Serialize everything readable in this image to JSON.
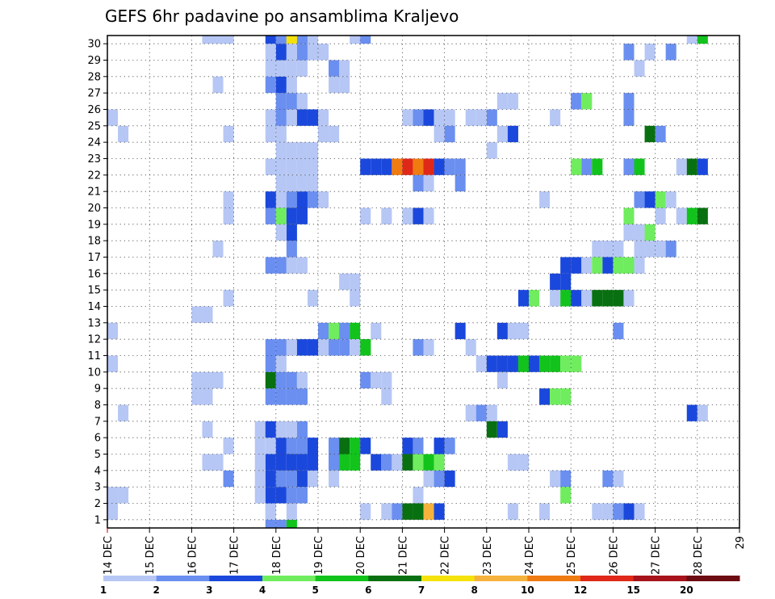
{
  "chart_data": {
    "type": "heatmap",
    "title": "GEFS 6hr padavine po ansamblima Kraljevo",
    "xlabel": "",
    "ylabel": "",
    "x_ticks": [
      "14 DEC",
      "15 DEC",
      "16 DEC",
      "17 DEC",
      "18 DEC",
      "19 DEC",
      "20 DEC",
      "21 DEC",
      "22 DEC",
      "23 DEC",
      "24 DEC",
      "25 DEC",
      "26 DEC",
      "27 DEC",
      "28 DEC",
      "29"
    ],
    "y_ticks": [
      "1",
      "2",
      "3",
      "4",
      "5",
      "6",
      "7",
      "8",
      "9",
      "10",
      "11",
      "12",
      "13",
      "14",
      "15",
      "16",
      "17",
      "18",
      "19",
      "20",
      "21",
      "22",
      "23",
      "24",
      "25",
      "26",
      "27",
      "28",
      "29",
      "30"
    ],
    "xlim": [
      0,
      60
    ],
    "ylim": [
      0,
      30
    ],
    "grid": true,
    "legend_position": "bottom",
    "colorbar": {
      "levels": [
        "1",
        "2",
        "3",
        "4",
        "5",
        "6",
        "7",
        "8",
        "10",
        "12",
        "15",
        "20"
      ],
      "colors": [
        "#b6c7f5",
        "#6a8ff0",
        "#1b48dc",
        "#70ed5f",
        "#12c31c",
        "#087010",
        "#f5e20a",
        "#f5b23c",
        "#f07b10",
        "#e02818",
        "#a8131b",
        "#6c0b12"
      ]
    },
    "cells": [
      [
        0,
        1,
        1
      ],
      [
        4,
        1,
        2
      ],
      [
        5,
        1,
        1
      ],
      [
        7,
        1,
        1
      ],
      [
        12,
        1,
        2
      ],
      [
        13,
        1,
        1
      ],
      [
        14,
        1,
        3
      ],
      [
        18,
        1,
        1
      ],
      [
        20,
        1,
        2
      ],
      [
        22,
        1,
        1
      ],
      [
        23,
        1,
        3
      ],
      [
        25,
        1,
        1
      ],
      [
        26,
        1,
        5
      ],
      [
        27,
        1,
        2
      ],
      [
        28,
        1,
        2
      ],
      [
        29,
        1,
        5
      ],
      [
        31,
        1,
        2
      ],
      [
        32,
        1,
        2
      ],
      [
        34,
        1,
        3
      ],
      [
        35,
        1,
        1
      ],
      [
        36,
        1,
        1
      ],
      [
        37,
        1,
        2
      ],
      [
        38,
        1,
        2
      ],
      [
        39,
        1,
        1
      ],
      [
        40,
        1,
        1
      ],
      [
        41,
        1,
        1
      ],
      [
        42,
        1,
        1
      ],
      [
        46,
        1,
        1
      ],
      [
        51,
        1,
        1
      ],
      [
        52,
        1,
        1
      ],
      [
        55,
        1,
        1
      ],
      [
        58,
        1,
        1
      ],
      [
        59,
        1,
        1
      ],
      [
        17,
        2,
        2
      ],
      [
        18,
        2,
        3
      ],
      [
        17,
        3,
        2
      ],
      [
        22,
        5,
        3
      ],
      [
        21,
        5,
        2
      ],
      [
        24,
        1,
        1
      ],
      [
        25,
        3,
        1
      ],
      [
        28,
        5,
        3
      ],
      [
        39,
        2,
        1
      ],
      [
        41,
        2,
        1
      ],
      [
        45,
        2,
        1
      ],
      [
        46,
        2,
        1
      ],
      [
        47,
        2,
        1
      ],
      [
        49,
        2,
        2
      ],
      [
        51,
        2,
        2
      ],
      [
        53,
        2,
        2
      ],
      [
        54,
        2,
        2
      ],
      [
        57,
        2,
        2
      ],
      [
        57,
        3,
        1
      ],
      [
        56,
        3,
        1
      ],
      [
        55,
        3,
        2
      ],
      [
        55,
        5,
        3
      ],
      [
        53,
        4,
        1
      ],
      [
        53,
        5,
        1
      ],
      [
        51,
        3,
        1
      ],
      [
        52,
        3,
        2
      ],
      [
        51,
        4,
        1
      ],
      [
        52,
        4,
        2
      ],
      [
        51,
        5,
        3
      ],
      [
        52,
        5,
        3
      ],
      [
        53,
        5,
        2
      ],
      [
        54,
        5,
        2
      ],
      [
        59,
        5,
        1
      ],
      [
        58,
        5,
        1
      ],
      [
        1,
        12,
        1
      ],
      [
        0,
        12,
        1
      ],
      [
        1,
        11,
        1
      ],
      [
        0,
        11,
        1
      ],
      [
        44,
        7,
        3
      ],
      [
        45,
        7,
        3
      ],
      [
        46,
        7,
        3
      ],
      [
        47,
        7,
        3
      ],
      [
        48,
        7,
        3
      ],
      [
        49,
        7,
        3
      ],
      [
        49,
        8,
        3
      ],
      [
        48,
        8,
        4
      ],
      [
        47,
        8,
        4
      ],
      [
        46,
        8,
        5
      ],
      [
        45,
        8,
        5
      ],
      [
        44,
        8,
        6
      ],
      [
        50,
        10,
        1
      ],
      [
        48,
        10,
        2
      ],
      [
        47,
        10,
        2
      ],
      [
        46,
        10,
        2
      ],
      [
        46,
        11,
        2
      ],
      [
        45,
        10,
        2
      ],
      [
        44,
        10,
        6
      ],
      [
        43,
        10,
        6
      ],
      [
        42,
        10,
        5
      ],
      [
        41,
        10,
        5
      ],
      [
        58,
        10,
        2
      ],
      [
        57,
        10,
        2
      ]
    ]
  },
  "grid_cells": [
    [
      0,
      1,
      1
    ],
    [
      0,
      2,
      1
    ],
    [
      1,
      2,
      1
    ],
    [
      1,
      7,
      1
    ],
    [
      0,
      10,
      1
    ],
    [
      0,
      12,
      1
    ],
    [
      1,
      24,
      1
    ],
    [
      0,
      25,
      1
    ],
    [
      9,
      4,
      1
    ],
    [
      10,
      4,
      1
    ],
    [
      9,
      6,
      1
    ],
    [
      10,
      27,
      1
    ],
    [
      8,
      13,
      1
    ],
    [
      9,
      13,
      1
    ],
    [
      8,
      8,
      1
    ],
    [
      9,
      8,
      1
    ],
    [
      8,
      9,
      1
    ],
    [
      9,
      9,
      1
    ],
    [
      10,
      9,
      1
    ],
    [
      9,
      8,
      1
    ],
    [
      11,
      3,
      2
    ],
    [
      11,
      5,
      1
    ],
    [
      11,
      14,
      1
    ],
    [
      11,
      19,
      1
    ],
    [
      11,
      20,
      1
    ],
    [
      10,
      17,
      1
    ],
    [
      11,
      24,
      1
    ],
    [
      11,
      30,
      1
    ],
    [
      10,
      30,
      1
    ],
    [
      9,
      30,
      1
    ],
    [
      15,
      1,
      1
    ],
    [
      16,
      0,
      2
    ],
    [
      15,
      0,
      2
    ],
    [
      17,
      0,
      5
    ],
    [
      15,
      4,
      3
    ],
    [
      15,
      3,
      3
    ],
    [
      15,
      2,
      3
    ],
    [
      14,
      2,
      1
    ],
    [
      14,
      3,
      1
    ],
    [
      14,
      4,
      1
    ],
    [
      14,
      5,
      1
    ],
    [
      15,
      5,
      1
    ],
    [
      16,
      2,
      3
    ],
    [
      16,
      3,
      2
    ],
    [
      16,
      4,
      3
    ],
    [
      16,
      5,
      3
    ],
    [
      17,
      2,
      2
    ],
    [
      17,
      3,
      2
    ],
    [
      17,
      4,
      3
    ],
    [
      17,
      5,
      2
    ],
    [
      18,
      3,
      3
    ],
    [
      18,
      4,
      3
    ],
    [
      18,
      5,
      2
    ],
    [
      18,
      2,
      2
    ],
    [
      19,
      3,
      1
    ],
    [
      19,
      5,
      3
    ],
    [
      19,
      4,
      3
    ],
    [
      14,
      6,
      1
    ],
    [
      15,
      6,
      3
    ],
    [
      16,
      6,
      1
    ],
    [
      17,
      6,
      1
    ],
    [
      18,
      6,
      2
    ],
    [
      15,
      8,
      2
    ],
    [
      16,
      8,
      2
    ],
    [
      17,
      8,
      2
    ],
    [
      18,
      8,
      2
    ],
    [
      15,
      9,
      6
    ],
    [
      16,
      9,
      2
    ],
    [
      17,
      9,
      2
    ],
    [
      18,
      9,
      1
    ],
    [
      17,
      8,
      2
    ],
    [
      15,
      10,
      2
    ],
    [
      16,
      10,
      1
    ],
    [
      15,
      11,
      2
    ],
    [
      16,
      11,
      2
    ],
    [
      17,
      11,
      1
    ],
    [
      18,
      11,
      3
    ],
    [
      19,
      11,
      3
    ],
    [
      20,
      11,
      1
    ],
    [
      21,
      11,
      2
    ],
    [
      22,
      11,
      2
    ],
    [
      24,
      11,
      5
    ],
    [
      20,
      12,
      2
    ],
    [
      21,
      12,
      4
    ],
    [
      25,
      12,
      1
    ],
    [
      15,
      1,
      1
    ],
    [
      17,
      1,
      1
    ],
    [
      19,
      14,
      1
    ],
    [
      15,
      16,
      2
    ],
    [
      16,
      16,
      2
    ],
    [
      17,
      16,
      1
    ],
    [
      18,
      16,
      1
    ],
    [
      17,
      17,
      2
    ],
    [
      17,
      18,
      3
    ],
    [
      16,
      18,
      1
    ],
    [
      15,
      19,
      2
    ],
    [
      16,
      19,
      4
    ],
    [
      17,
      19,
      3
    ],
    [
      18,
      19,
      3
    ],
    [
      17,
      20,
      1
    ],
    [
      16,
      20,
      1
    ],
    [
      18,
      20,
      1
    ],
    [
      19,
      20,
      1
    ],
    [
      20,
      20,
      1
    ],
    [
      15,
      20,
      3
    ],
    [
      17,
      20,
      2
    ],
    [
      18,
      20,
      3
    ],
    [
      19,
      20,
      2
    ],
    [
      16,
      21,
      1
    ],
    [
      17,
      21,
      1
    ],
    [
      18,
      21,
      1
    ],
    [
      19,
      21,
      1
    ],
    [
      17,
      22,
      1
    ],
    [
      16,
      22,
      1
    ],
    [
      18,
      22,
      1
    ],
    [
      19,
      22,
      1
    ],
    [
      15,
      22,
      1
    ],
    [
      16,
      23,
      1
    ],
    [
      17,
      23,
      1
    ],
    [
      18,
      23,
      1
    ],
    [
      19,
      23,
      1
    ],
    [
      15,
      24,
      1
    ],
    [
      16,
      24,
      1
    ],
    [
      15,
      25,
      1
    ],
    [
      16,
      25,
      2
    ],
    [
      17,
      25,
      1
    ],
    [
      18,
      25,
      3
    ],
    [
      19,
      25,
      3
    ],
    [
      20,
      25,
      1
    ],
    [
      16,
      26,
      2
    ],
    [
      17,
      26,
      2
    ],
    [
      18,
      26,
      1
    ],
    [
      16,
      27,
      3
    ],
    [
      15,
      27,
      2
    ],
    [
      17,
      27,
      1
    ],
    [
      16,
      28,
      1
    ],
    [
      15,
      28,
      1
    ],
    [
      17,
      28,
      1
    ],
    [
      18,
      28,
      1
    ],
    [
      16,
      29,
      3
    ],
    [
      15,
      29,
      1
    ],
    [
      17,
      29,
      1
    ],
    [
      18,
      29,
      2
    ],
    [
      19,
      29,
      1
    ],
    [
      20,
      29,
      1
    ],
    [
      15,
      30,
      3
    ],
    [
      16,
      30,
      2
    ],
    [
      17,
      30,
      7
    ],
    [
      18,
      30,
      2
    ],
    [
      19,
      30,
      1
    ],
    [
      23,
      30,
      1
    ],
    [
      24,
      30,
      2
    ],
    [
      20,
      24,
      1
    ],
    [
      21,
      24,
      1
    ],
    [
      22,
      28,
      1
    ],
    [
      21,
      28,
      2
    ],
    [
      22,
      27,
      1
    ],
    [
      21,
      27,
      1
    ],
    [
      21,
      4,
      2
    ],
    [
      22,
      4,
      5
    ],
    [
      23,
      4,
      5
    ],
    [
      21,
      5,
      2
    ],
    [
      22,
      5,
      6
    ],
    [
      23,
      5,
      5
    ],
    [
      24,
      5,
      3
    ],
    [
      21,
      3,
      1
    ],
    [
      23,
      12,
      5
    ],
    [
      22,
      12,
      2
    ],
    [
      24,
      11,
      5
    ],
    [
      23,
      11,
      1
    ],
    [
      22,
      15,
      1
    ],
    [
      23,
      15,
      1
    ],
    [
      23,
      14,
      1
    ],
    [
      24,
      1,
      1
    ],
    [
      24,
      19,
      1
    ],
    [
      24,
      9,
      2
    ],
    [
      25,
      9,
      1
    ],
    [
      26,
      9,
      1
    ],
    [
      26,
      8,
      1
    ],
    [
      25,
      4,
      3
    ],
    [
      26,
      4,
      2
    ],
    [
      27,
      4,
      1
    ],
    [
      26,
      1,
      1
    ],
    [
      27,
      1,
      2
    ],
    [
      28,
      1,
      6
    ],
    [
      29,
      1,
      6
    ],
    [
      30,
      1,
      8
    ],
    [
      31,
      1,
      3
    ],
    [
      28,
      4,
      6
    ],
    [
      29,
      4,
      4
    ],
    [
      30,
      4,
      5
    ],
    [
      31,
      4,
      4
    ],
    [
      28,
      5,
      3
    ],
    [
      29,
      5,
      2
    ],
    [
      31,
      5,
      3
    ],
    [
      32,
      5,
      2
    ],
    [
      29,
      2,
      1
    ],
    [
      30,
      3,
      1
    ],
    [
      31,
      3,
      2
    ],
    [
      32,
      3,
      3
    ],
    [
      24,
      22,
      3
    ],
    [
      25,
      22,
      3
    ],
    [
      26,
      22,
      3
    ],
    [
      27,
      22,
      9
    ],
    [
      28,
      22,
      10
    ],
    [
      29,
      22,
      9
    ],
    [
      30,
      22,
      10
    ],
    [
      31,
      22,
      3
    ],
    [
      32,
      22,
      2
    ],
    [
      33,
      22,
      2
    ],
    [
      28,
      19,
      1
    ],
    [
      29,
      19,
      3
    ],
    [
      30,
      19,
      1
    ],
    [
      26,
      19,
      1
    ],
    [
      29,
      21,
      2
    ],
    [
      30,
      21,
      1
    ],
    [
      28,
      25,
      1
    ],
    [
      29,
      25,
      2
    ],
    [
      30,
      25,
      3
    ],
    [
      31,
      25,
      1
    ],
    [
      32,
      25,
      1
    ],
    [
      32,
      24,
      2
    ],
    [
      31,
      24,
      1
    ],
    [
      29,
      11,
      2
    ],
    [
      30,
      11,
      1
    ],
    [
      34,
      7,
      1
    ],
    [
      35,
      7,
      2
    ],
    [
      36,
      7,
      1
    ],
    [
      34,
      11,
      1
    ],
    [
      35,
      10,
      1
    ],
    [
      36,
      10,
      3
    ],
    [
      37,
      10,
      3
    ],
    [
      38,
      10,
      3
    ],
    [
      39,
      10,
      5
    ],
    [
      40,
      10,
      3
    ],
    [
      41,
      10,
      5
    ],
    [
      42,
      10,
      5
    ],
    [
      43,
      10,
      4
    ],
    [
      44,
      10,
      4
    ],
    [
      37,
      12,
      3
    ],
    [
      38,
      12,
      1
    ],
    [
      39,
      12,
      1
    ],
    [
      33,
      12,
      3
    ],
    [
      36,
      25,
      2
    ],
    [
      35,
      25,
      1
    ],
    [
      34,
      25,
      1
    ],
    [
      33,
      21,
      2
    ],
    [
      36,
      23,
      1
    ],
    [
      36,
      6,
      6
    ],
    [
      37,
      6,
      3
    ],
    [
      38,
      4,
      1
    ],
    [
      39,
      4,
      1
    ],
    [
      38,
      1,
      1
    ],
    [
      41,
      1,
      1
    ],
    [
      37,
      24,
      1
    ],
    [
      38,
      24,
      3
    ],
    [
      37,
      26,
      1
    ],
    [
      38,
      26,
      1
    ],
    [
      37,
      9,
      1
    ],
    [
      39,
      14,
      3
    ],
    [
      40,
      14,
      4
    ],
    [
      42,
      15,
      3
    ],
    [
      43,
      15,
      3
    ],
    [
      42,
      14,
      1
    ],
    [
      43,
      14,
      5
    ],
    [
      44,
      14,
      3
    ],
    [
      43,
      16,
      3
    ],
    [
      44,
      16,
      3
    ],
    [
      41,
      8,
      3
    ],
    [
      42,
      8,
      4
    ],
    [
      43,
      8,
      4
    ],
    [
      42,
      3,
      1
    ],
    [
      43,
      3,
      2
    ],
    [
      43,
      2,
      4
    ],
    [
      41,
      20,
      1
    ],
    [
      42,
      25,
      1
    ],
    [
      44,
      22,
      4
    ],
    [
      45,
      22,
      2
    ],
    [
      46,
      22,
      5
    ],
    [
      44,
      26,
      2
    ],
    [
      45,
      26,
      4
    ],
    [
      45,
      16,
      1
    ],
    [
      46,
      16,
      4
    ],
    [
      47,
      16,
      3
    ],
    [
      48,
      16,
      4
    ],
    [
      49,
      16,
      4
    ],
    [
      50,
      16,
      1
    ],
    [
      45,
      14,
      1
    ],
    [
      46,
      14,
      6
    ],
    [
      47,
      14,
      6
    ],
    [
      48,
      14,
      6
    ],
    [
      49,
      14,
      1
    ],
    [
      46,
      17,
      1
    ],
    [
      47,
      17,
      1
    ],
    [
      48,
      17,
      1
    ],
    [
      47,
      3,
      2
    ],
    [
      48,
      3,
      1
    ],
    [
      46,
      1,
      1
    ],
    [
      47,
      1,
      1
    ],
    [
      48,
      1,
      2
    ],
    [
      49,
      1,
      3
    ],
    [
      50,
      1,
      1
    ],
    [
      48,
      12,
      2
    ],
    [
      49,
      18,
      1
    ],
    [
      50,
      18,
      1
    ],
    [
      51,
      18,
      4
    ],
    [
      49,
      19,
      4
    ],
    [
      50,
      20,
      2
    ],
    [
      51,
      20,
      3
    ],
    [
      52,
      20,
      4
    ],
    [
      49,
      22,
      2
    ],
    [
      50,
      22,
      5
    ],
    [
      49,
      25,
      2
    ],
    [
      49,
      26,
      2
    ],
    [
      49,
      29,
      2
    ],
    [
      51,
      29,
      1
    ],
    [
      53,
      29,
      2
    ],
    [
      50,
      28,
      1
    ],
    [
      51,
      24,
      6
    ],
    [
      52,
      24,
      2
    ],
    [
      53,
      20,
      1
    ],
    [
      52,
      19,
      1
    ],
    [
      50,
      17,
      1
    ],
    [
      51,
      17,
      1
    ],
    [
      52,
      17,
      1
    ],
    [
      54,
      22,
      1
    ],
    [
      55,
      22,
      6
    ],
    [
      56,
      22,
      3
    ],
    [
      54,
      19,
      1
    ],
    [
      55,
      19,
      5
    ],
    [
      56,
      19,
      6
    ],
    [
      55,
      30,
      1
    ],
    [
      56,
      30,
      5
    ],
    [
      53,
      17,
      2
    ],
    [
      55,
      7,
      3
    ],
    [
      56,
      7,
      1
    ]
  ]
}
